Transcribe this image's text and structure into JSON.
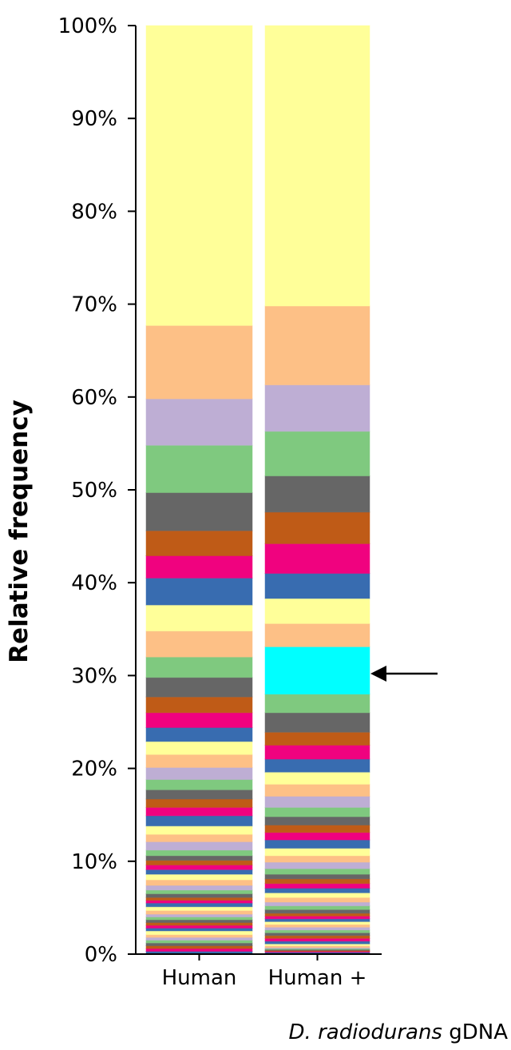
{
  "chart_data": {
    "type": "stacked-bar",
    "ylabel": "Relative frequency",
    "categories": [
      "Human",
      "Human +"
    ],
    "category_note": {
      "italic": "D. radiodurans",
      "text": "gDNA"
    },
    "ylim": [
      0,
      100
    ],
    "yticks": [
      {
        "value": 0,
        "label": "0%"
      },
      {
        "value": 10,
        "label": "10%"
      },
      {
        "value": 20,
        "label": "20%"
      },
      {
        "value": 30,
        "label": "30%"
      },
      {
        "value": 40,
        "label": "40%"
      },
      {
        "value": 50,
        "label": "50%"
      },
      {
        "value": 60,
        "label": "60%"
      },
      {
        "value": 70,
        "label": "70%"
      },
      {
        "value": 80,
        "label": "80%"
      },
      {
        "value": 90,
        "label": "90%"
      },
      {
        "value": 100,
        "label": "100%"
      }
    ],
    "stacks": [
      {
        "values": [
          0.3,
          0.3,
          0.3,
          0.3,
          0.3,
          0.3,
          0.3,
          0.4,
          0.3,
          0.3,
          0.3,
          0.3,
          0.3,
          0.3,
          0.4,
          0.4,
          0.4,
          0.3,
          0.3,
          0.4,
          0.4,
          0.5,
          0.6,
          0.6,
          0.5,
          0.5,
          0.5,
          0.5,
          0.6,
          0.9,
          0.8,
          0.9,
          1.1,
          0.9,
          0.9,
          1.0,
          1.1,
          1.3,
          1.4,
          1.4,
          1.5,
          1.6,
          1.7,
          2.1,
          2.2,
          2.8,
          2.8,
          2.9,
          2.4,
          2.7,
          4.1,
          5.1,
          5.0,
          7.9,
          32.3
        ],
        "colors": [
          "#386cb0",
          "#f0027f",
          "#bf5b17",
          "#666666",
          "#7fc97f",
          "#beaed4",
          "#fdc086",
          "#ffff99",
          "#386cb0",
          "#f0027f",
          "#bf5b17",
          "#666666",
          "#7fc97f",
          "#beaed4",
          "#fdc086",
          "#ffff99",
          "#386cb0",
          "#f0027f",
          "#bf5b17",
          "#666666",
          "#7fc97f",
          "#beaed4",
          "#fdc086",
          "#ffff99",
          "#386cb0",
          "#f0027f",
          "#bf5b17",
          "#666666",
          "#7fc97f",
          "#beaed4",
          "#fdc086",
          "#ffff99",
          "#386cb0",
          "#f0027f",
          "#bf5b17",
          "#666666",
          "#7fc97f",
          "#beaed4",
          "#fdc086",
          "#ffff99",
          "#386cb0",
          "#f0027f",
          "#bf5b17",
          "#666666",
          "#7fc97f",
          "#fdc086",
          "#ffff99",
          "#386cb0",
          "#f0027f",
          "#bf5b17",
          "#666666",
          "#7fc97f",
          "#beaed4",
          "#fdc086",
          "#ffff99"
        ]
      },
      {
        "values": [
          0.2,
          0.1,
          0.1,
          0.1,
          0.1,
          0.1,
          0.2,
          0.2,
          0.3,
          0.3,
          0.3,
          0.3,
          0.3,
          0.3,
          0.3,
          0.3,
          0.3,
          0.3,
          0.3,
          0.4,
          0.4,
          0.4,
          0.5,
          0.5,
          0.5,
          0.5,
          0.5,
          0.5,
          0.6,
          0.7,
          0.7,
          0.8,
          0.9,
          0.8,
          0.8,
          0.9,
          1.0,
          1.2,
          1.3,
          1.3,
          1.4,
          1.5,
          1.4,
          2.1,
          2.0,
          5.1,
          2.5,
          2.7,
          2.7,
          3.2,
          3.4,
          3.9,
          4.8,
          5.0,
          8.5,
          30.2
        ],
        "colors": [
          "#386cb0",
          "#f0027f",
          "#bf5b17",
          "#666666",
          "#7fc97f",
          "#beaed4",
          "#fdc086",
          "#ffff99",
          "#386cb0",
          "#f0027f",
          "#bf5b17",
          "#666666",
          "#7fc97f",
          "#beaed4",
          "#fdc086",
          "#ffff99",
          "#386cb0",
          "#f0027f",
          "#bf5b17",
          "#666666",
          "#7fc97f",
          "#beaed4",
          "#fdc086",
          "#ffff99",
          "#386cb0",
          "#f0027f",
          "#bf5b17",
          "#666666",
          "#7fc97f",
          "#beaed4",
          "#fdc086",
          "#ffff99",
          "#386cb0",
          "#f0027f",
          "#bf5b17",
          "#666666",
          "#7fc97f",
          "#beaed4",
          "#fdc086",
          "#ffff99",
          "#386cb0",
          "#f0027f",
          "#bf5b17",
          "#666666",
          "#7fc97f",
          "#00ffff",
          "#fdc086",
          "#ffff99",
          "#386cb0",
          "#f0027f",
          "#bf5b17",
          "#666666",
          "#7fc97f",
          "#beaed4",
          "#fdc086",
          "#ffff99"
        ]
      }
    ]
  }
}
